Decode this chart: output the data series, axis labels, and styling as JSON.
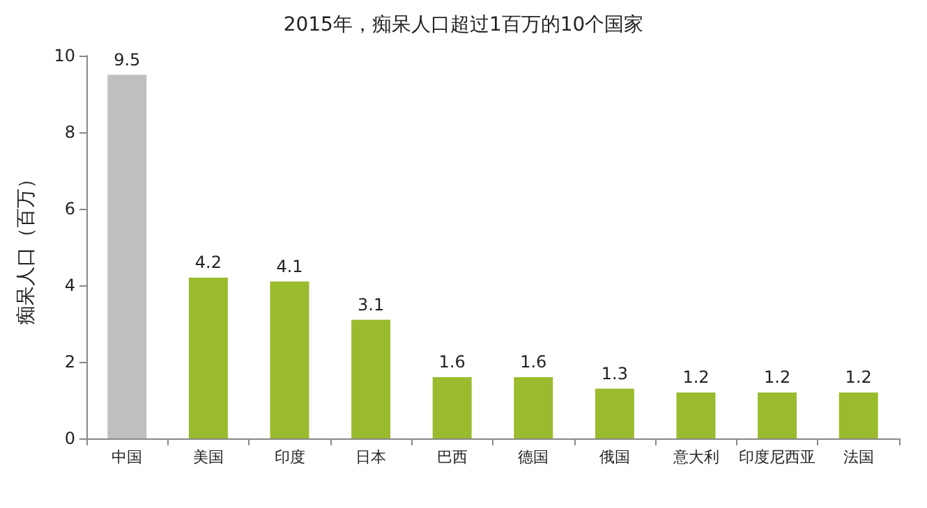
{
  "chart_data": {
    "type": "bar",
    "title": "2015年，痴呆人口超过1百万的10个国家",
    "ylabel": "痴呆人口（百万）",
    "categories": [
      "中国",
      "美国",
      "印度",
      "日本",
      "巴西",
      "德国",
      "俄国",
      "意大利",
      "印度尼西亚",
      "法国"
    ],
    "values": [
      9.5,
      4.2,
      4.1,
      3.1,
      1.6,
      1.6,
      1.3,
      1.2,
      1.2,
      1.2
    ],
    "colors": [
      "#bfbfbf",
      "#9bbb2f",
      "#9bbb2f",
      "#9bbb2f",
      "#9bbb2f",
      "#9bbb2f",
      "#9bbb2f",
      "#9bbb2f",
      "#9bbb2f",
      "#9bbb2f"
    ],
    "ylim": [
      0,
      10
    ],
    "yticks": [
      0,
      2,
      4,
      6,
      8,
      10
    ],
    "grid": false,
    "data_labels": true
  }
}
